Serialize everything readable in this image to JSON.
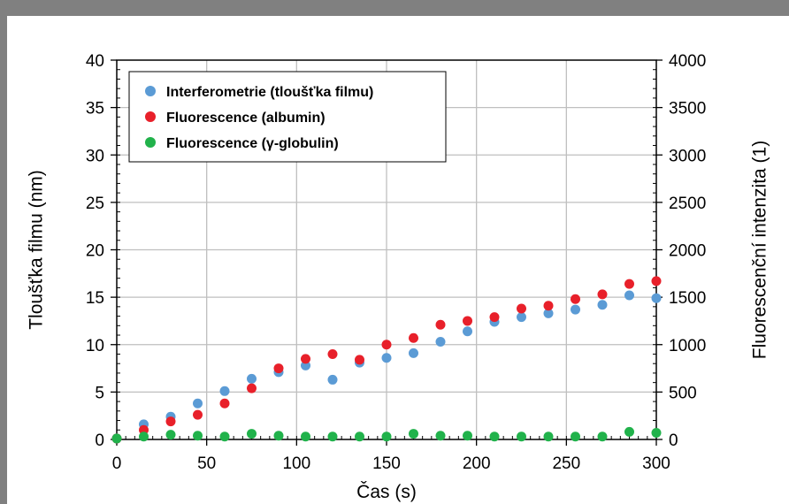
{
  "chart_data": {
    "type": "scatter",
    "xlabel": "Čas (s)",
    "ylabel": "Tloušťka filmu (nm)",
    "y2label": "Fluorescenční intenzita (1)",
    "xlim": [
      0,
      300
    ],
    "ylim": [
      0,
      40
    ],
    "y2lim": [
      0,
      4000
    ],
    "xticks": [
      "0",
      "50",
      "100",
      "150",
      "200",
      "250",
      "300"
    ],
    "yticks": [
      "0",
      "5",
      "10",
      "15",
      "20",
      "25",
      "30",
      "35",
      "40"
    ],
    "y2ticks": [
      "0",
      "500",
      "1000",
      "1500",
      "2000",
      "2500",
      "3000",
      "3500",
      "4000"
    ],
    "grid": true,
    "legend_position": "top-left",
    "series": [
      {
        "name": "Interferometrie (tloušťka filmu)",
        "axis": "left",
        "color": "#5b9bd5",
        "x": [
          0,
          15,
          30,
          45,
          60,
          75,
          90,
          105,
          120,
          135,
          150,
          165,
          180,
          195,
          210,
          225,
          240,
          255,
          270,
          285,
          300
        ],
        "y": [
          0.1,
          1.6,
          2.4,
          3.8,
          5.1,
          6.4,
          7.1,
          7.8,
          6.3,
          8.1,
          8.6,
          9.1,
          10.3,
          11.4,
          12.4,
          12.9,
          13.3,
          13.7,
          14.2,
          15.2,
          14.9
        ]
      },
      {
        "name": "Fluorescence (albumin)",
        "axis": "right",
        "color": "#e8202a",
        "x": [
          0,
          15,
          30,
          45,
          60,
          75,
          90,
          105,
          120,
          135,
          150,
          165,
          180,
          195,
          210,
          225,
          240,
          255,
          270,
          285,
          300
        ],
        "y": [
          10,
          100,
          190,
          260,
          380,
          540,
          750,
          850,
          900,
          840,
          1000,
          1070,
          1210,
          1250,
          1290,
          1380,
          1410,
          1480,
          1530,
          1640,
          1670
        ]
      },
      {
        "name": "Fluorescence (γ-globulin)",
        "axis": "right",
        "color": "#21b24b",
        "x": [
          0,
          15,
          30,
          45,
          60,
          75,
          90,
          105,
          120,
          135,
          150,
          165,
          180,
          195,
          210,
          225,
          240,
          255,
          270,
          285,
          300
        ],
        "y": [
          10,
          30,
          50,
          40,
          30,
          60,
          40,
          30,
          30,
          30,
          30,
          60,
          40,
          40,
          30,
          30,
          30,
          30,
          30,
          80,
          70
        ]
      }
    ]
  }
}
